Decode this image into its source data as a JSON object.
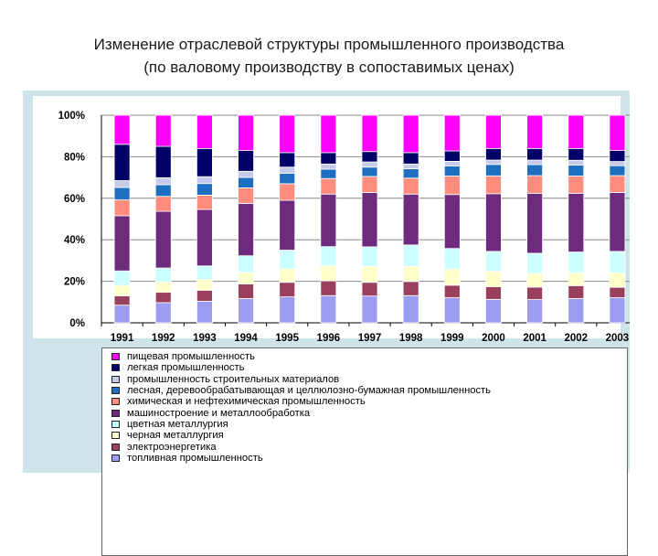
{
  "title": {
    "line1": "Изменение отраслевой структуры промышленного производства",
    "line2": "(по валовому производству в сопоставимых ценах)"
  },
  "chart_data": {
    "type": "bar",
    "stacked": true,
    "title": "Изменение отраслевой структуры промышленного производства (по валовому производству в сопоставимых ценах)",
    "categories": [
      "1991",
      "1992",
      "1993",
      "1994",
      "1995",
      "1996",
      "1997",
      "1998",
      "1999",
      "2000",
      "2001",
      "2002",
      "2003"
    ],
    "y_ticks": [
      "0%",
      "20%",
      "40%",
      "60%",
      "80%",
      "100%"
    ],
    "ylim": [
      0,
      100
    ],
    "grid": true,
    "legend_position": "bottom",
    "series": [
      {
        "name": "топливная промышленность",
        "color": "#9c9cf0",
        "values": [
          8.5,
          9.7,
          10.4,
          11.7,
          12.5,
          13.1,
          12.9,
          13.1,
          12.1,
          11.3,
          11.2,
          11.7,
          12.1
        ]
      },
      {
        "name": "электроэнергетика",
        "color": "#9a3f5e",
        "values": [
          4.5,
          5.0,
          5.3,
          7.0,
          7.0,
          7.1,
          6.6,
          6.8,
          6.0,
          6.1,
          6.0,
          6.2,
          5.0
        ]
      },
      {
        "name": "черная металлургия",
        "color": "#ffffcc",
        "values": [
          5.0,
          5.1,
          5.2,
          5.6,
          6.5,
          7.3,
          7.7,
          7.3,
          7.7,
          7.5,
          6.6,
          6.2,
          7.0
        ]
      },
      {
        "name": "цветная металлургия",
        "color": "#ccffff",
        "values": [
          7.0,
          6.6,
          6.5,
          8.0,
          9.0,
          9.2,
          9.4,
          10.3,
          10.0,
          9.5,
          9.7,
          10.0,
          10.3
        ]
      },
      {
        "name": "машиностроение и металлообработка",
        "color": "#6e2b7e",
        "values": [
          26.6,
          27.3,
          27.2,
          25.2,
          24.0,
          25.3,
          26.2,
          24.5,
          26.0,
          27.8,
          28.8,
          28.3,
          28.4
        ]
      },
      {
        "name": "химическая и нефтехимическая промышленность",
        "color": "#ff8c7d",
        "values": [
          7.6,
          7.2,
          6.9,
          7.5,
          8.0,
          7.5,
          7.7,
          7.7,
          8.9,
          8.6,
          8.6,
          8.3,
          8.1
        ]
      },
      {
        "name": "лесная, деревообрабатывающая и целлюлозно-бумажная промышленность",
        "color": "#1f6fc0",
        "values": [
          6.0,
          5.6,
          5.6,
          5.0,
          5.0,
          4.5,
          4.5,
          4.5,
          4.9,
          5.5,
          5.3,
          5.3,
          4.8
        ]
      },
      {
        "name": "промышленность строительных материалов",
        "color": "#c7cbea",
        "values": [
          3.3,
          3.4,
          3.3,
          3.0,
          3.0,
          2.5,
          2.5,
          2.3,
          2.2,
          2.1,
          2.2,
          2.3,
          2.0
        ]
      },
      {
        "name": "легкая промышленность",
        "color": "#000066",
        "values": [
          17.5,
          15.1,
          13.6,
          10.0,
          7.0,
          5.5,
          5.0,
          5.5,
          5.0,
          5.6,
          5.6,
          5.7,
          5.3
        ]
      },
      {
        "name": "пищевая промышленность",
        "color": "#ff00ff",
        "values": [
          14.0,
          15.0,
          16.0,
          17.0,
          18.0,
          18.0,
          17.5,
          18.0,
          17.2,
          16.0,
          16.0,
          16.0,
          17.0
        ]
      }
    ]
  }
}
